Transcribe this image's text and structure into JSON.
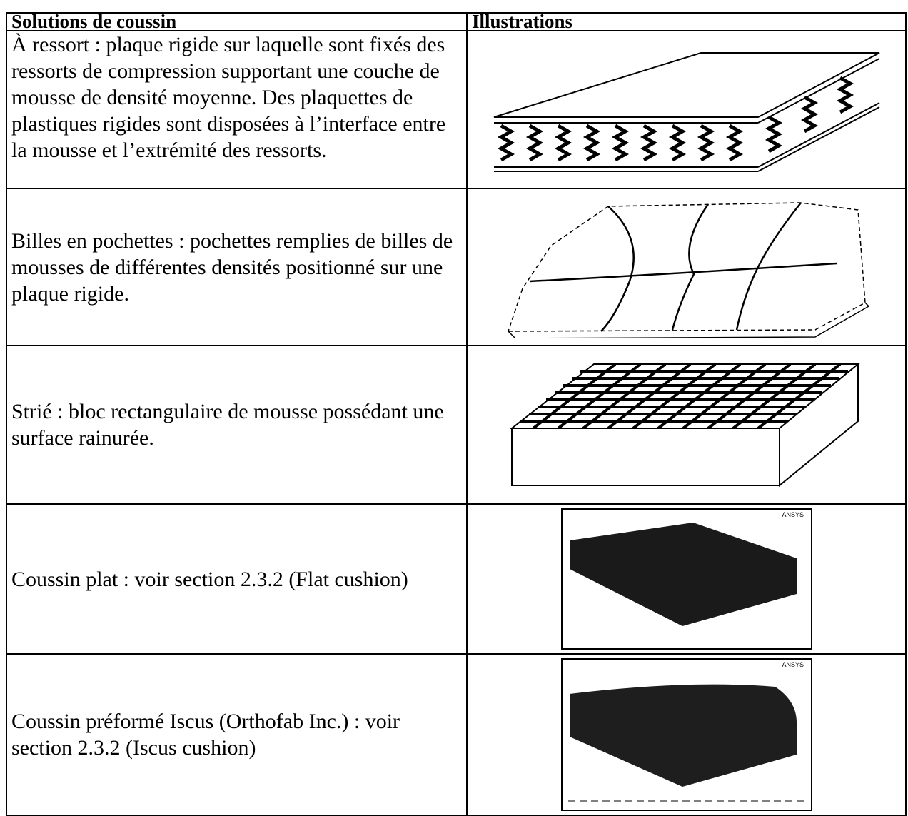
{
  "table": {
    "header": [
      "Solutions de coussin",
      "Illustrations"
    ],
    "rows": [
      {
        "solution": "À ressort : plaque rigide sur laquelle sont fixés des ressorts de compression supportant une couche de mousse de densité moyenne. Des plaquettes de plastiques rigides sont disposées à l’interface entre la mousse et l’extrémité des ressorts."
      },
      {
        "solution": "Billes en pochettes : pochettes remplies de billes de mousses de différentes densités positionné sur une plaque rigide."
      },
      {
        "solution": "Strié : bloc rectangulaire de mousse possédant une surface rainurée."
      },
      {
        "solution": "Coussin plat : voir section 2.3.2 (Flat cushion)",
        "figure_label": "ANSYS"
      },
      {
        "solution": "Coussin préformé Iscus (Orthofab Inc.) : voir section 2.3.2 (Iscus cushion)",
        "figure_label": "ANSYS"
      }
    ]
  }
}
